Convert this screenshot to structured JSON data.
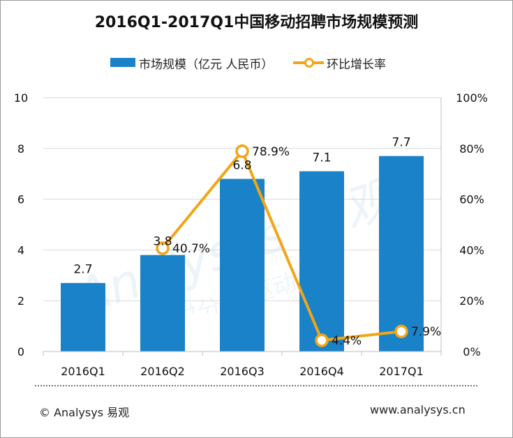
{
  "title": "2016Q1-2017Q1中国移动招聘市场规模预测",
  "legend": {
    "bar_label": "市场规模（亿元 人民币）",
    "line_label": "环比增长率"
  },
  "colors": {
    "bar": "#1a82c8",
    "line": "#f2a516"
  },
  "chart_data": {
    "type": "bar",
    "title": "2016Q1-2017Q1中国移动招聘市场规模预测",
    "categories": [
      "2016Q1",
      "2016Q2",
      "2016Q3",
      "2016Q4",
      "2017Q1"
    ],
    "series": [
      {
        "name": "市场规模（亿元 人民币）",
        "type": "bar",
        "axis": "left",
        "values": [
          2.7,
          3.8,
          6.8,
          7.1,
          7.7
        ],
        "labels": [
          "2.7",
          "3.8",
          "6.8",
          "7.1",
          "7.7"
        ]
      },
      {
        "name": "环比增长率",
        "type": "line",
        "axis": "right",
        "values": [
          null,
          40.7,
          78.9,
          4.4,
          7.9
        ],
        "labels": [
          "",
          "40.7%",
          "78.9%",
          "4.4%",
          "7.9%"
        ]
      }
    ],
    "left_axis": {
      "min": 0,
      "max": 10,
      "ticks": [
        "0",
        "2",
        "4",
        "6",
        "8",
        "10"
      ]
    },
    "right_axis": {
      "min": 0,
      "max": 100,
      "ticks": [
        "0%",
        "20%",
        "40%",
        "60%",
        "80%",
        "100%"
      ]
    },
    "grid": true
  },
  "footer": {
    "copyright": "© Analysys 易观",
    "website": "www.analysys.cn"
  }
}
